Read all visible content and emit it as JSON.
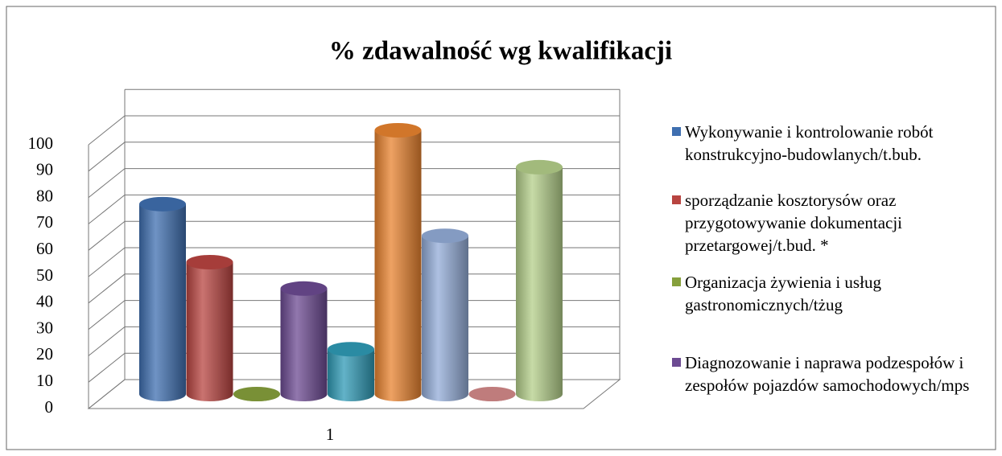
{
  "chart_data": {
    "type": "bar3d",
    "title": "% zdawalność wg kwalifikacji",
    "categories": [
      "1"
    ],
    "series": [
      {
        "name": "Wykonywanie i kontrolowanie robót konstrukcyjno-budowlanych/t.bub.",
        "color": "#3f6fb0",
        "values": [
          72
        ]
      },
      {
        "name": "sporządzanie kosztorysów oraz przygotowywanie dokumentacji przetargowej/t.bud. *",
        "color": "#b84440",
        "values": [
          50
        ]
      },
      {
        "name": "Organizacja żywienia i usług gastronomicznych/tżug",
        "color": "#86a03c",
        "values": [
          0
        ]
      },
      {
        "name": "Diagnozowanie i naprawa podzespołów i zespołów pojazdów samochodowych/mps",
        "color": "#6c4a92",
        "values": [
          40
        ]
      },
      {
        "name": null,
        "color": "#2f9ab5",
        "values": [
          17
        ]
      },
      {
        "name": null,
        "color": "#e8832f",
        "values": [
          100
        ]
      },
      {
        "name": null,
        "color": "#93acd8",
        "values": [
          60
        ]
      },
      {
        "name": null,
        "color": "#d48a8a",
        "values": [
          0
        ]
      },
      {
        "name": null,
        "color": "#b4cf8a",
        "values": [
          86
        ]
      }
    ],
    "ylim": [
      0,
      110
    ],
    "yticks": [
      0,
      10,
      20,
      30,
      40,
      50,
      60,
      70,
      80,
      90,
      100
    ],
    "grid": true
  }
}
